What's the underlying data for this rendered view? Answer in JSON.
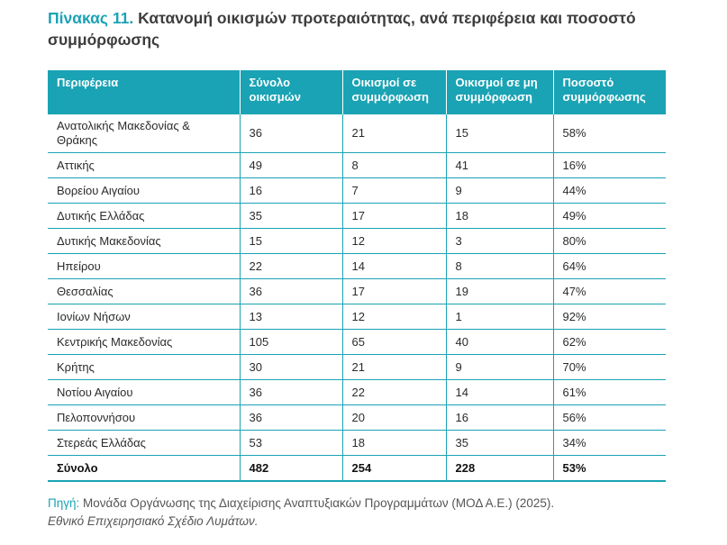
{
  "title": {
    "label": "Πίνακας 11.",
    "text": "Κατανομή οικισμών προτεραιότητας, ανά περιφέρεια και ποσοστό συμμόρφωσης"
  },
  "table": {
    "headers": [
      "Περιφέρεια",
      "Σύνολο οικισμών",
      "Οικισμοί σε συμμόρφωση",
      "Οικισμοί σε μη συμμόρφωση",
      "Ποσοστό συμμόρφωσης"
    ],
    "rows": [
      [
        "Ανατολικής Μακεδονίας & Θράκης",
        "36",
        "21",
        "15",
        "58%"
      ],
      [
        "Αττικής",
        "49",
        "8",
        "41",
        "16%"
      ],
      [
        "Βορείου Αιγαίου",
        "16",
        "7",
        "9",
        "44%"
      ],
      [
        "Δυτικής Ελλάδας",
        "35",
        "17",
        "18",
        "49%"
      ],
      [
        "Δυτικής Μακεδονίας",
        "15",
        "12",
        "3",
        "80%"
      ],
      [
        "Ηπείρου",
        "22",
        "14",
        "8",
        "64%"
      ],
      [
        "Θεσσαλίας",
        "36",
        "17",
        "19",
        "47%"
      ],
      [
        "Ιονίων Νήσων",
        "13",
        "12",
        "1",
        "92%"
      ],
      [
        "Κεντρικής Μακεδονίας",
        "105",
        "65",
        "40",
        "62%"
      ],
      [
        "Κρήτης",
        "30",
        "21",
        "9",
        "70%"
      ],
      [
        "Νοτίου Αιγαίου",
        "36",
        "22",
        "14",
        "61%"
      ],
      [
        "Πελοποννήσου",
        "36",
        "20",
        "16",
        "56%"
      ],
      [
        "Στερεάς Ελλάδας",
        "53",
        "18",
        "35",
        "34%"
      ]
    ],
    "total": [
      "Σύνολο",
      "482",
      "254",
      "228",
      "53%"
    ]
  },
  "source": {
    "label": "Πηγή:",
    "text": "Μονάδα Οργάνωσης της Διαχείρισης Αναπτυξιακών Προγραμμάτων (ΜΟΔ Α.Ε.) (2025).",
    "italic": "Εθνικό Επιχειρησιακό Σχέδιο Λυμάτων."
  },
  "colors": {
    "accent": "#1aa3b4"
  }
}
